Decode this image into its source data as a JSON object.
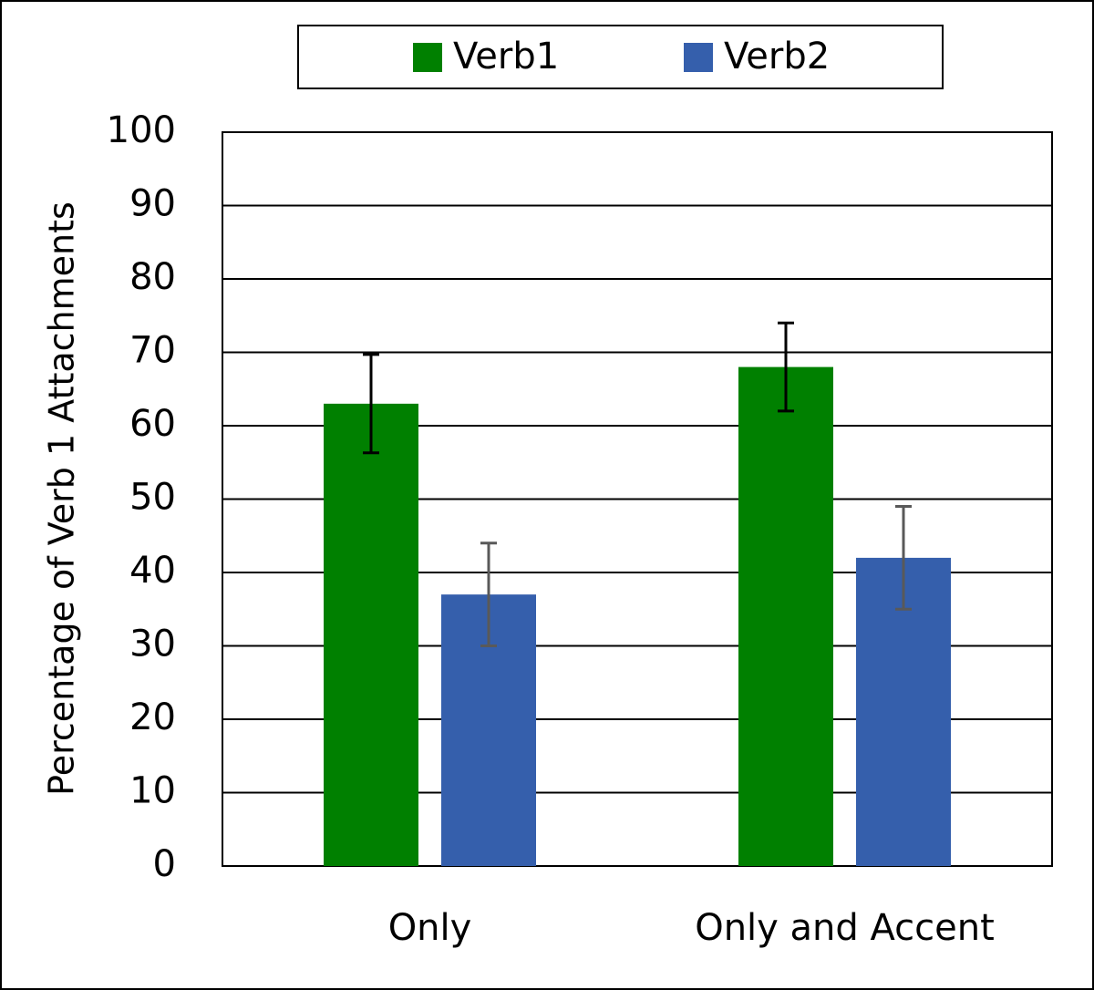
{
  "chart_data": {
    "type": "bar",
    "y_label": "Percentage of Verb 1 Attachments",
    "categories": [
      "Only",
      "Only and Accent"
    ],
    "series": [
      {
        "name": "Verb1",
        "color": "#008000",
        "error_color": "#000000",
        "values": [
          63,
          68
        ],
        "errors": [
          6.7,
          6
        ]
      },
      {
        "name": "Verb2",
        "color": "#355fac",
        "error_color": "#595959",
        "values": [
          37,
          42
        ],
        "errors": [
          7,
          7
        ]
      }
    ],
    "ylim": [
      0,
      100
    ],
    "yticks": [
      0,
      10,
      20,
      30,
      40,
      50,
      60,
      70,
      80,
      90,
      100
    ],
    "grid": true
  }
}
